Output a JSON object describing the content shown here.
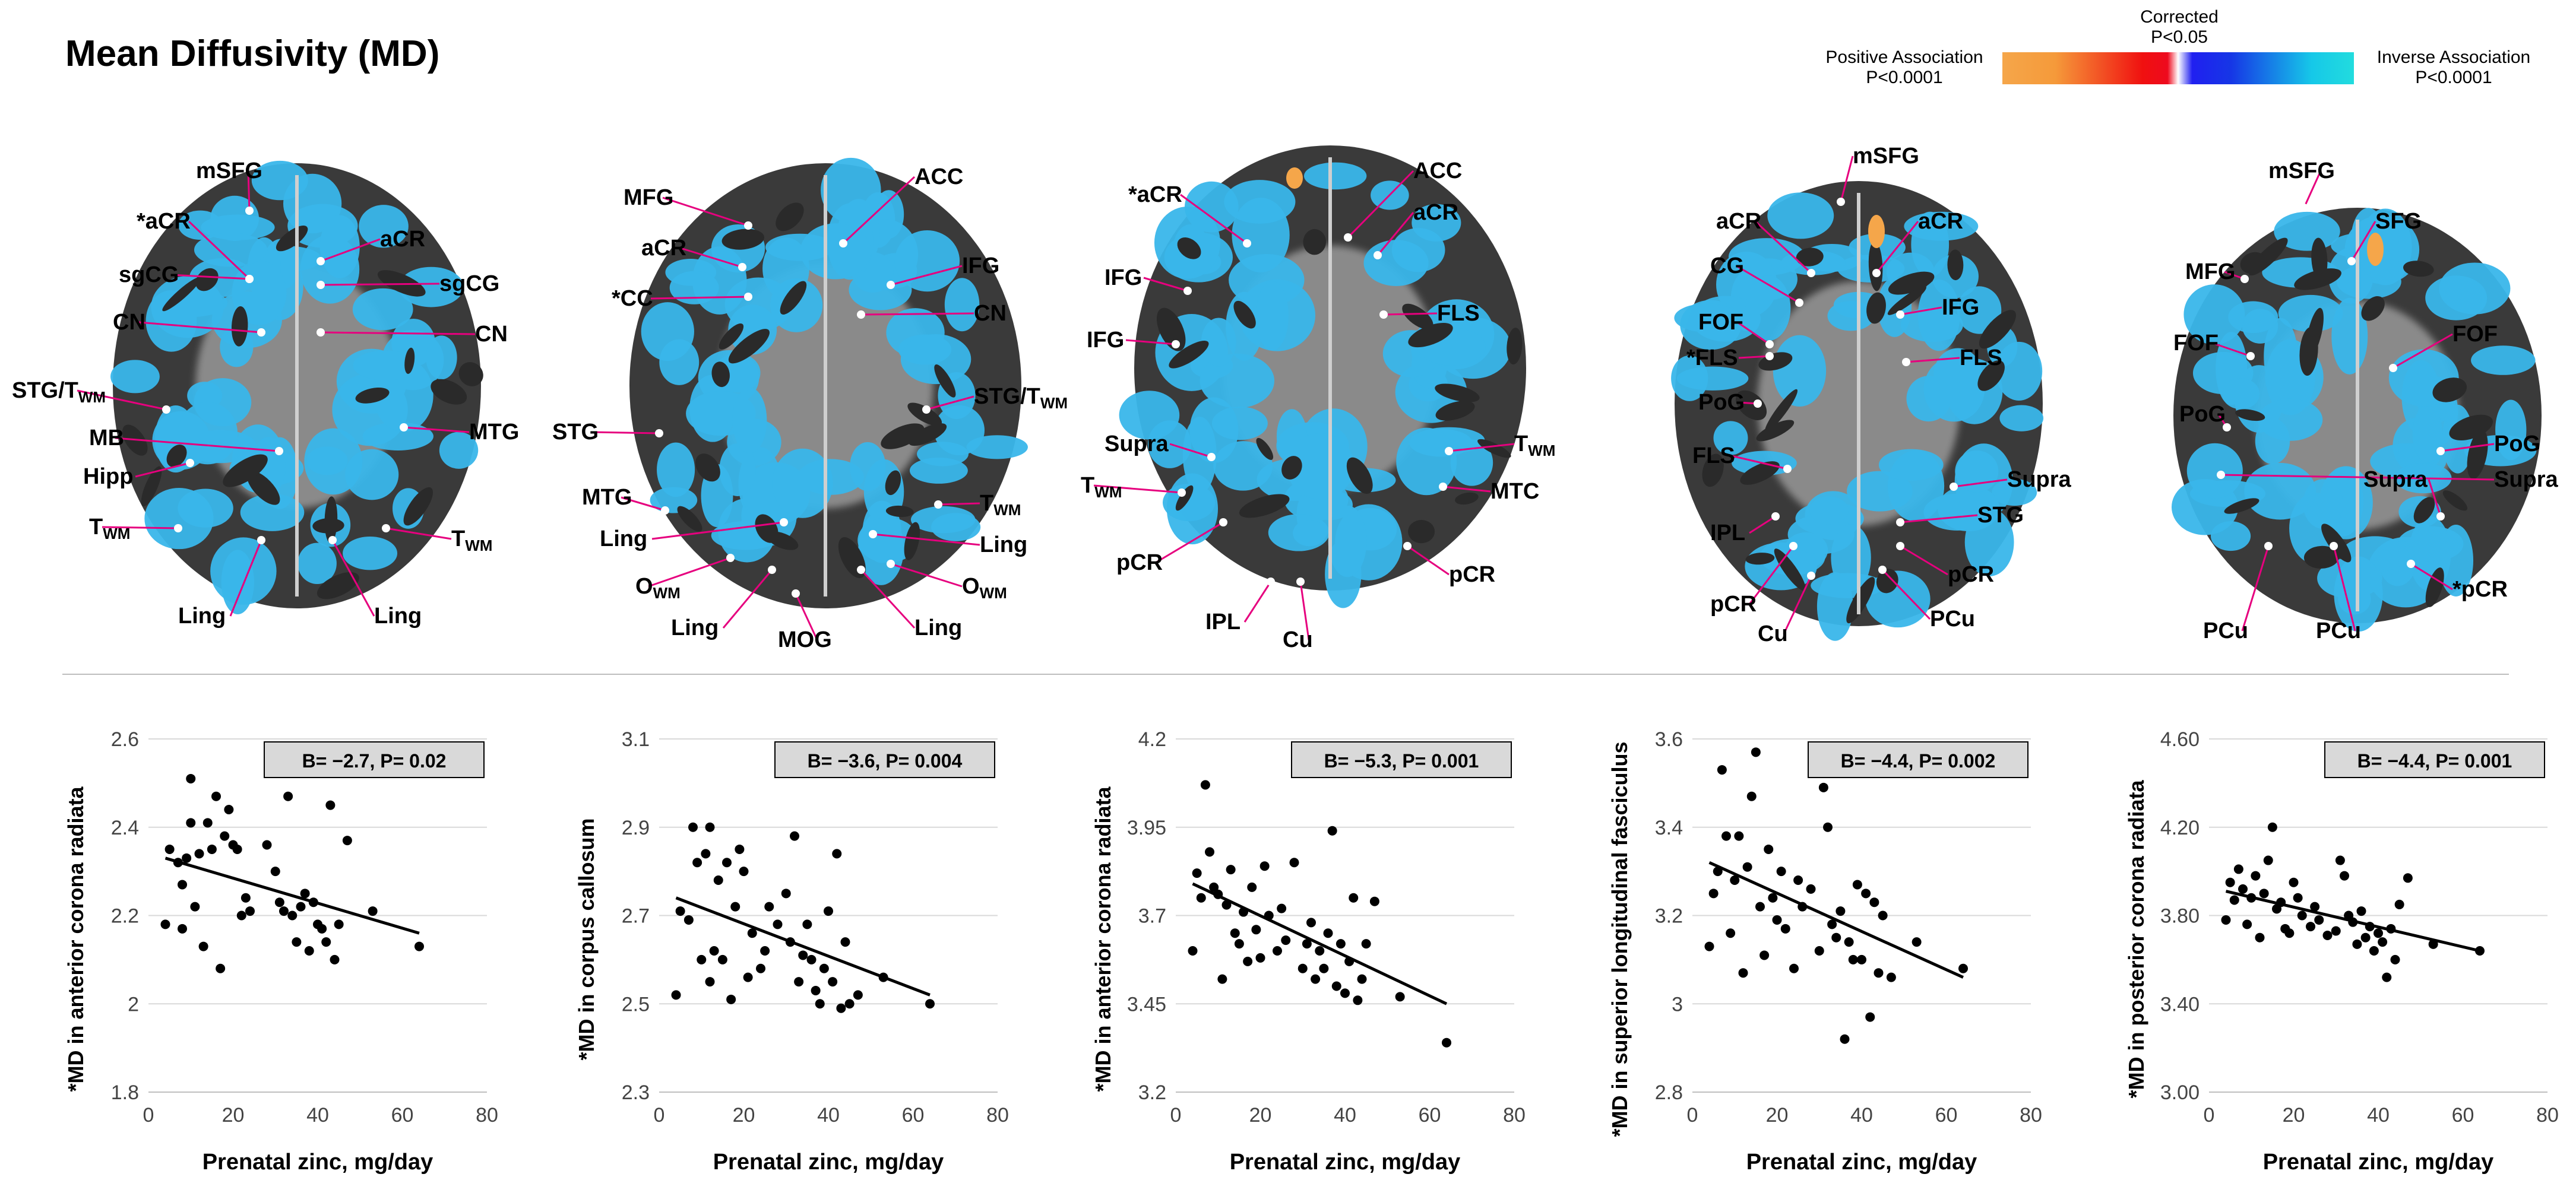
{
  "figure": {
    "title": "Mean Diffusivity (MD)",
    "legend": {
      "positive_label": "Positive Association",
      "positive_p": "P<0.0001",
      "corrected_label": "Corrected",
      "corrected_p": "P<0.05",
      "inverse_label": "Inverse Association",
      "inverse_p": "P<0.0001"
    },
    "colors": {
      "label_line": "#e6007e",
      "region_fill": "#39b6ea",
      "positive": "#f5a64a"
    }
  },
  "brain_slices": [
    {
      "labels": [
        "mSFG",
        "*aCR",
        "aCR",
        "sgCG",
        "sgCG",
        "CN",
        "CN",
        "STG/T",
        "MB",
        "Hipp",
        "MTG",
        "T",
        "T",
        "Ling",
        "Ling"
      ]
    },
    {
      "labels": [
        "MFG",
        "ACC",
        "aCR",
        "IFG",
        "*CC",
        "CN",
        "STG/T",
        "STG",
        "MTG",
        "T",
        "Ling",
        "Ling",
        "O",
        "O",
        "Ling",
        "Ling",
        "MOG"
      ]
    },
    {
      "labels": [
        "*aCR",
        "ACC",
        "aCR",
        "IFG",
        "IFG",
        "FLS",
        "Supra",
        "T",
        "T",
        "MTC",
        "pCR",
        "pCR",
        "IPL",
        "Cu"
      ]
    },
    {
      "labels": [
        "mSFG",
        "aCR",
        "aCR",
        "CG",
        "IFG",
        "FOF",
        "*FLS",
        "FLS",
        "PoG",
        "FLS",
        "Supra",
        "IPL",
        "STG",
        "pCR",
        "pCR",
        "Cu",
        "PCu"
      ]
    },
    {
      "labels": [
        "mSFG",
        "SFG",
        "MFG",
        "FOF",
        "FOF",
        "PoG",
        "PoG",
        "Supra",
        "Supra",
        "*pCR",
        "PCu",
        "PCu"
      ]
    }
  ],
  "brain_subscript": "WM",
  "chart_data": [
    {
      "type": "scatter",
      "ylabel": "*MD in anterior corona radiata",
      "xlabel": "Prenatal zinc, mg/day",
      "stat_label": "B= −2.7, P= 0.02",
      "xlim": [
        0,
        80
      ],
      "ylim": [
        1.8,
        2.6
      ],
      "x_ticks": [
        "0",
        "20",
        "40",
        "60",
        "80"
      ],
      "y_ticks": [
        "1.8",
        "2",
        "2.2",
        "2.4",
        "2.6"
      ],
      "fit_line": [
        [
          4,
          2.33
        ],
        [
          64,
          2.16
        ]
      ],
      "points": [
        [
          4,
          2.18
        ],
        [
          5,
          2.35
        ],
        [
          7,
          2.32
        ],
        [
          8,
          2.27
        ],
        [
          8,
          2.17
        ],
        [
          9,
          2.33
        ],
        [
          10,
          2.41
        ],
        [
          10,
          2.51
        ],
        [
          11,
          2.22
        ],
        [
          12,
          2.34
        ],
        [
          13,
          2.13
        ],
        [
          14,
          2.41
        ],
        [
          15,
          2.35
        ],
        [
          16,
          2.47
        ],
        [
          17,
          2.08
        ],
        [
          18,
          2.38
        ],
        [
          19,
          2.44
        ],
        [
          20,
          2.36
        ],
        [
          21,
          2.35
        ],
        [
          22,
          2.2
        ],
        [
          23,
          2.24
        ],
        [
          24,
          2.21
        ],
        [
          28,
          2.36
        ],
        [
          30,
          2.3
        ],
        [
          31,
          2.23
        ],
        [
          32,
          2.21
        ],
        [
          33,
          2.47
        ],
        [
          34,
          2.2
        ],
        [
          36,
          2.22
        ],
        [
          37,
          2.25
        ],
        [
          38,
          2.12
        ],
        [
          39,
          2.23
        ],
        [
          40,
          2.18
        ],
        [
          41,
          2.17
        ],
        [
          42,
          2.14
        ],
        [
          43,
          2.45
        ],
        [
          44,
          2.1
        ],
        [
          45,
          2.18
        ],
        [
          47,
          2.37
        ],
        [
          53,
          2.21
        ],
        [
          64,
          2.13
        ],
        [
          35,
          2.14
        ]
      ]
    },
    {
      "type": "scatter",
      "ylabel": "*MD in corpus callosum",
      "xlabel": "Prenatal zinc, mg/day",
      "stat_label": "B= −3.6, P= 0.004",
      "xlim": [
        0,
        80
      ],
      "ylim": [
        2.3,
        3.1
      ],
      "x_ticks": [
        "0",
        "20",
        "40",
        "60",
        "80"
      ],
      "y_ticks": [
        "2.3",
        "2.5",
        "2.7",
        "2.9",
        "3.1"
      ],
      "fit_line": [
        [
          4,
          2.74
        ],
        [
          64,
          2.52
        ]
      ],
      "points": [
        [
          4,
          2.52
        ],
        [
          5,
          2.71
        ],
        [
          7,
          2.69
        ],
        [
          8,
          2.9
        ],
        [
          9,
          2.82
        ],
        [
          10,
          2.6
        ],
        [
          11,
          2.84
        ],
        [
          12,
          2.9
        ],
        [
          12,
          2.55
        ],
        [
          13,
          2.62
        ],
        [
          14,
          2.78
        ],
        [
          15,
          2.6
        ],
        [
          16,
          2.82
        ],
        [
          17,
          2.51
        ],
        [
          18,
          2.72
        ],
        [
          19,
          2.85
        ],
        [
          20,
          2.8
        ],
        [
          21,
          2.56
        ],
        [
          22,
          2.66
        ],
        [
          24,
          2.58
        ],
        [
          25,
          2.62
        ],
        [
          26,
          2.72
        ],
        [
          28,
          2.68
        ],
        [
          30,
          2.75
        ],
        [
          31,
          2.64
        ],
        [
          32,
          2.88
        ],
        [
          33,
          2.55
        ],
        [
          34,
          2.61
        ],
        [
          35,
          2.68
        ],
        [
          36,
          2.6
        ],
        [
          37,
          2.53
        ],
        [
          38,
          2.5
        ],
        [
          39,
          2.58
        ],
        [
          40,
          2.71
        ],
        [
          41,
          2.55
        ],
        [
          42,
          2.84
        ],
        [
          43,
          2.49
        ],
        [
          44,
          2.64
        ],
        [
          45,
          2.5
        ],
        [
          47,
          2.52
        ],
        [
          53,
          2.56
        ],
        [
          64,
          2.5
        ]
      ]
    },
    {
      "type": "scatter",
      "ylabel": "*MD in anterior corona radiata",
      "xlabel": "Prenatal zinc, mg/day",
      "stat_label": "B= −5.3, P= 0.001",
      "xlim": [
        0,
        80
      ],
      "ylim": [
        3.2,
        4.2
      ],
      "x_ticks": [
        "0",
        "20",
        "40",
        "60",
        "80"
      ],
      "y_ticks": [
        "3.2",
        "3.45",
        "3.7",
        "3.95",
        "4.2"
      ],
      "fit_line": [
        [
          4,
          3.79
        ],
        [
          64,
          3.45
        ]
      ],
      "points": [
        [
          4,
          3.6
        ],
        [
          5,
          3.82
        ],
        [
          6,
          3.75
        ],
        [
          7,
          4.07
        ],
        [
          8,
          3.88
        ],
        [
          9,
          3.78
        ],
        [
          10,
          3.76
        ],
        [
          11,
          3.52
        ],
        [
          12,
          3.73
        ],
        [
          13,
          3.83
        ],
        [
          14,
          3.65
        ],
        [
          15,
          3.62
        ],
        [
          16,
          3.71
        ],
        [
          17,
          3.57
        ],
        [
          18,
          3.78
        ],
        [
          19,
          3.66
        ],
        [
          20,
          3.58
        ],
        [
          21,
          3.84
        ],
        [
          22,
          3.7
        ],
        [
          24,
          3.6
        ],
        [
          25,
          3.72
        ],
        [
          26,
          3.63
        ],
        [
          28,
          3.85
        ],
        [
          30,
          3.55
        ],
        [
          31,
          3.62
        ],
        [
          32,
          3.68
        ],
        [
          33,
          3.52
        ],
        [
          34,
          3.6
        ],
        [
          35,
          3.55
        ],
        [
          36,
          3.65
        ],
        [
          37,
          3.94
        ],
        [
          38,
          3.5
        ],
        [
          39,
          3.62
        ],
        [
          40,
          3.48
        ],
        [
          41,
          3.57
        ],
        [
          42,
          3.75
        ],
        [
          43,
          3.46
        ],
        [
          44,
          3.52
        ],
        [
          45,
          3.62
        ],
        [
          47,
          3.74
        ],
        [
          53,
          3.47
        ],
        [
          64,
          3.34
        ]
      ]
    },
    {
      "type": "scatter",
      "ylabel": "*MD in superior longitudinal fasciculus",
      "xlabel": "Prenatal zinc, mg/day",
      "stat_label": "B= −4.4, P= 0.002",
      "xlim": [
        0,
        80
      ],
      "ylim": [
        2.8,
        3.6
      ],
      "x_ticks": [
        "0",
        "20",
        "40",
        "60",
        "80"
      ],
      "y_ticks": [
        "2.8",
        "3",
        "3.2",
        "3.4",
        "3.6"
      ],
      "fit_line": [
        [
          4,
          3.32
        ],
        [
          64,
          3.06
        ]
      ],
      "points": [
        [
          4,
          3.13
        ],
        [
          5,
          3.25
        ],
        [
          6,
          3.3
        ],
        [
          7,
          3.53
        ],
        [
          8,
          3.38
        ],
        [
          9,
          3.16
        ],
        [
          10,
          3.28
        ],
        [
          11,
          3.38
        ],
        [
          12,
          3.07
        ],
        [
          13,
          3.31
        ],
        [
          14,
          3.47
        ],
        [
          15,
          3.57
        ],
        [
          16,
          3.22
        ],
        [
          17,
          3.11
        ],
        [
          18,
          3.35
        ],
        [
          19,
          3.24
        ],
        [
          20,
          3.19
        ],
        [
          21,
          3.3
        ],
        [
          22,
          3.17
        ],
        [
          24,
          3.08
        ],
        [
          25,
          3.28
        ],
        [
          26,
          3.22
        ],
        [
          28,
          3.26
        ],
        [
          30,
          3.12
        ],
        [
          31,
          3.49
        ],
        [
          32,
          3.4
        ],
        [
          33,
          3.18
        ],
        [
          34,
          3.15
        ],
        [
          35,
          3.21
        ],
        [
          36,
          2.92
        ],
        [
          37,
          3.14
        ],
        [
          38,
          3.1
        ],
        [
          39,
          3.27
        ],
        [
          40,
          3.1
        ],
        [
          41,
          3.25
        ],
        [
          42,
          2.97
        ],
        [
          43,
          3.23
        ],
        [
          44,
          3.07
        ],
        [
          45,
          3.2
        ],
        [
          47,
          3.06
        ],
        [
          53,
          3.14
        ],
        [
          64,
          3.08
        ]
      ]
    },
    {
      "type": "scatter",
      "ylabel": "*MD in posterior corona radiata",
      "xlabel": "Prenatal zinc, mg/day",
      "stat_label": "B= −4.4, P= 0.001",
      "xlim": [
        0,
        80
      ],
      "ylim": [
        3.0,
        4.6
      ],
      "x_ticks": [
        "0",
        "20",
        "40",
        "60",
        "80"
      ],
      "y_ticks": [
        "3.00",
        "3.40",
        "3.80",
        "4.20",
        "4.60"
      ],
      "fit_line": [
        [
          4,
          3.91
        ],
        [
          64,
          3.64
        ]
      ],
      "points": [
        [
          4,
          3.78
        ],
        [
          5,
          3.95
        ],
        [
          6,
          3.87
        ],
        [
          7,
          4.01
        ],
        [
          8,
          3.92
        ],
        [
          9,
          3.76
        ],
        [
          10,
          3.88
        ],
        [
          11,
          3.98
        ],
        [
          12,
          3.7
        ],
        [
          13,
          3.9
        ],
        [
          14,
          4.05
        ],
        [
          15,
          4.2
        ],
        [
          16,
          3.83
        ],
        [
          17,
          3.86
        ],
        [
          18,
          3.74
        ],
        [
          19,
          3.72
        ],
        [
          20,
          3.95
        ],
        [
          21,
          3.88
        ],
        [
          22,
          3.8
        ],
        [
          24,
          3.75
        ],
        [
          25,
          3.84
        ],
        [
          26,
          3.78
        ],
        [
          28,
          3.71
        ],
        [
          30,
          3.73
        ],
        [
          31,
          4.05
        ],
        [
          32,
          3.98
        ],
        [
          33,
          3.8
        ],
        [
          34,
          3.77
        ],
        [
          35,
          3.67
        ],
        [
          36,
          3.82
        ],
        [
          37,
          3.7
        ],
        [
          38,
          3.75
        ],
        [
          39,
          3.64
        ],
        [
          40,
          3.72
        ],
        [
          41,
          3.68
        ],
        [
          42,
          3.52
        ],
        [
          43,
          3.74
        ],
        [
          44,
          3.6
        ],
        [
          45,
          3.85
        ],
        [
          47,
          3.97
        ],
        [
          53,
          3.67
        ],
        [
          64,
          3.64
        ]
      ]
    }
  ]
}
